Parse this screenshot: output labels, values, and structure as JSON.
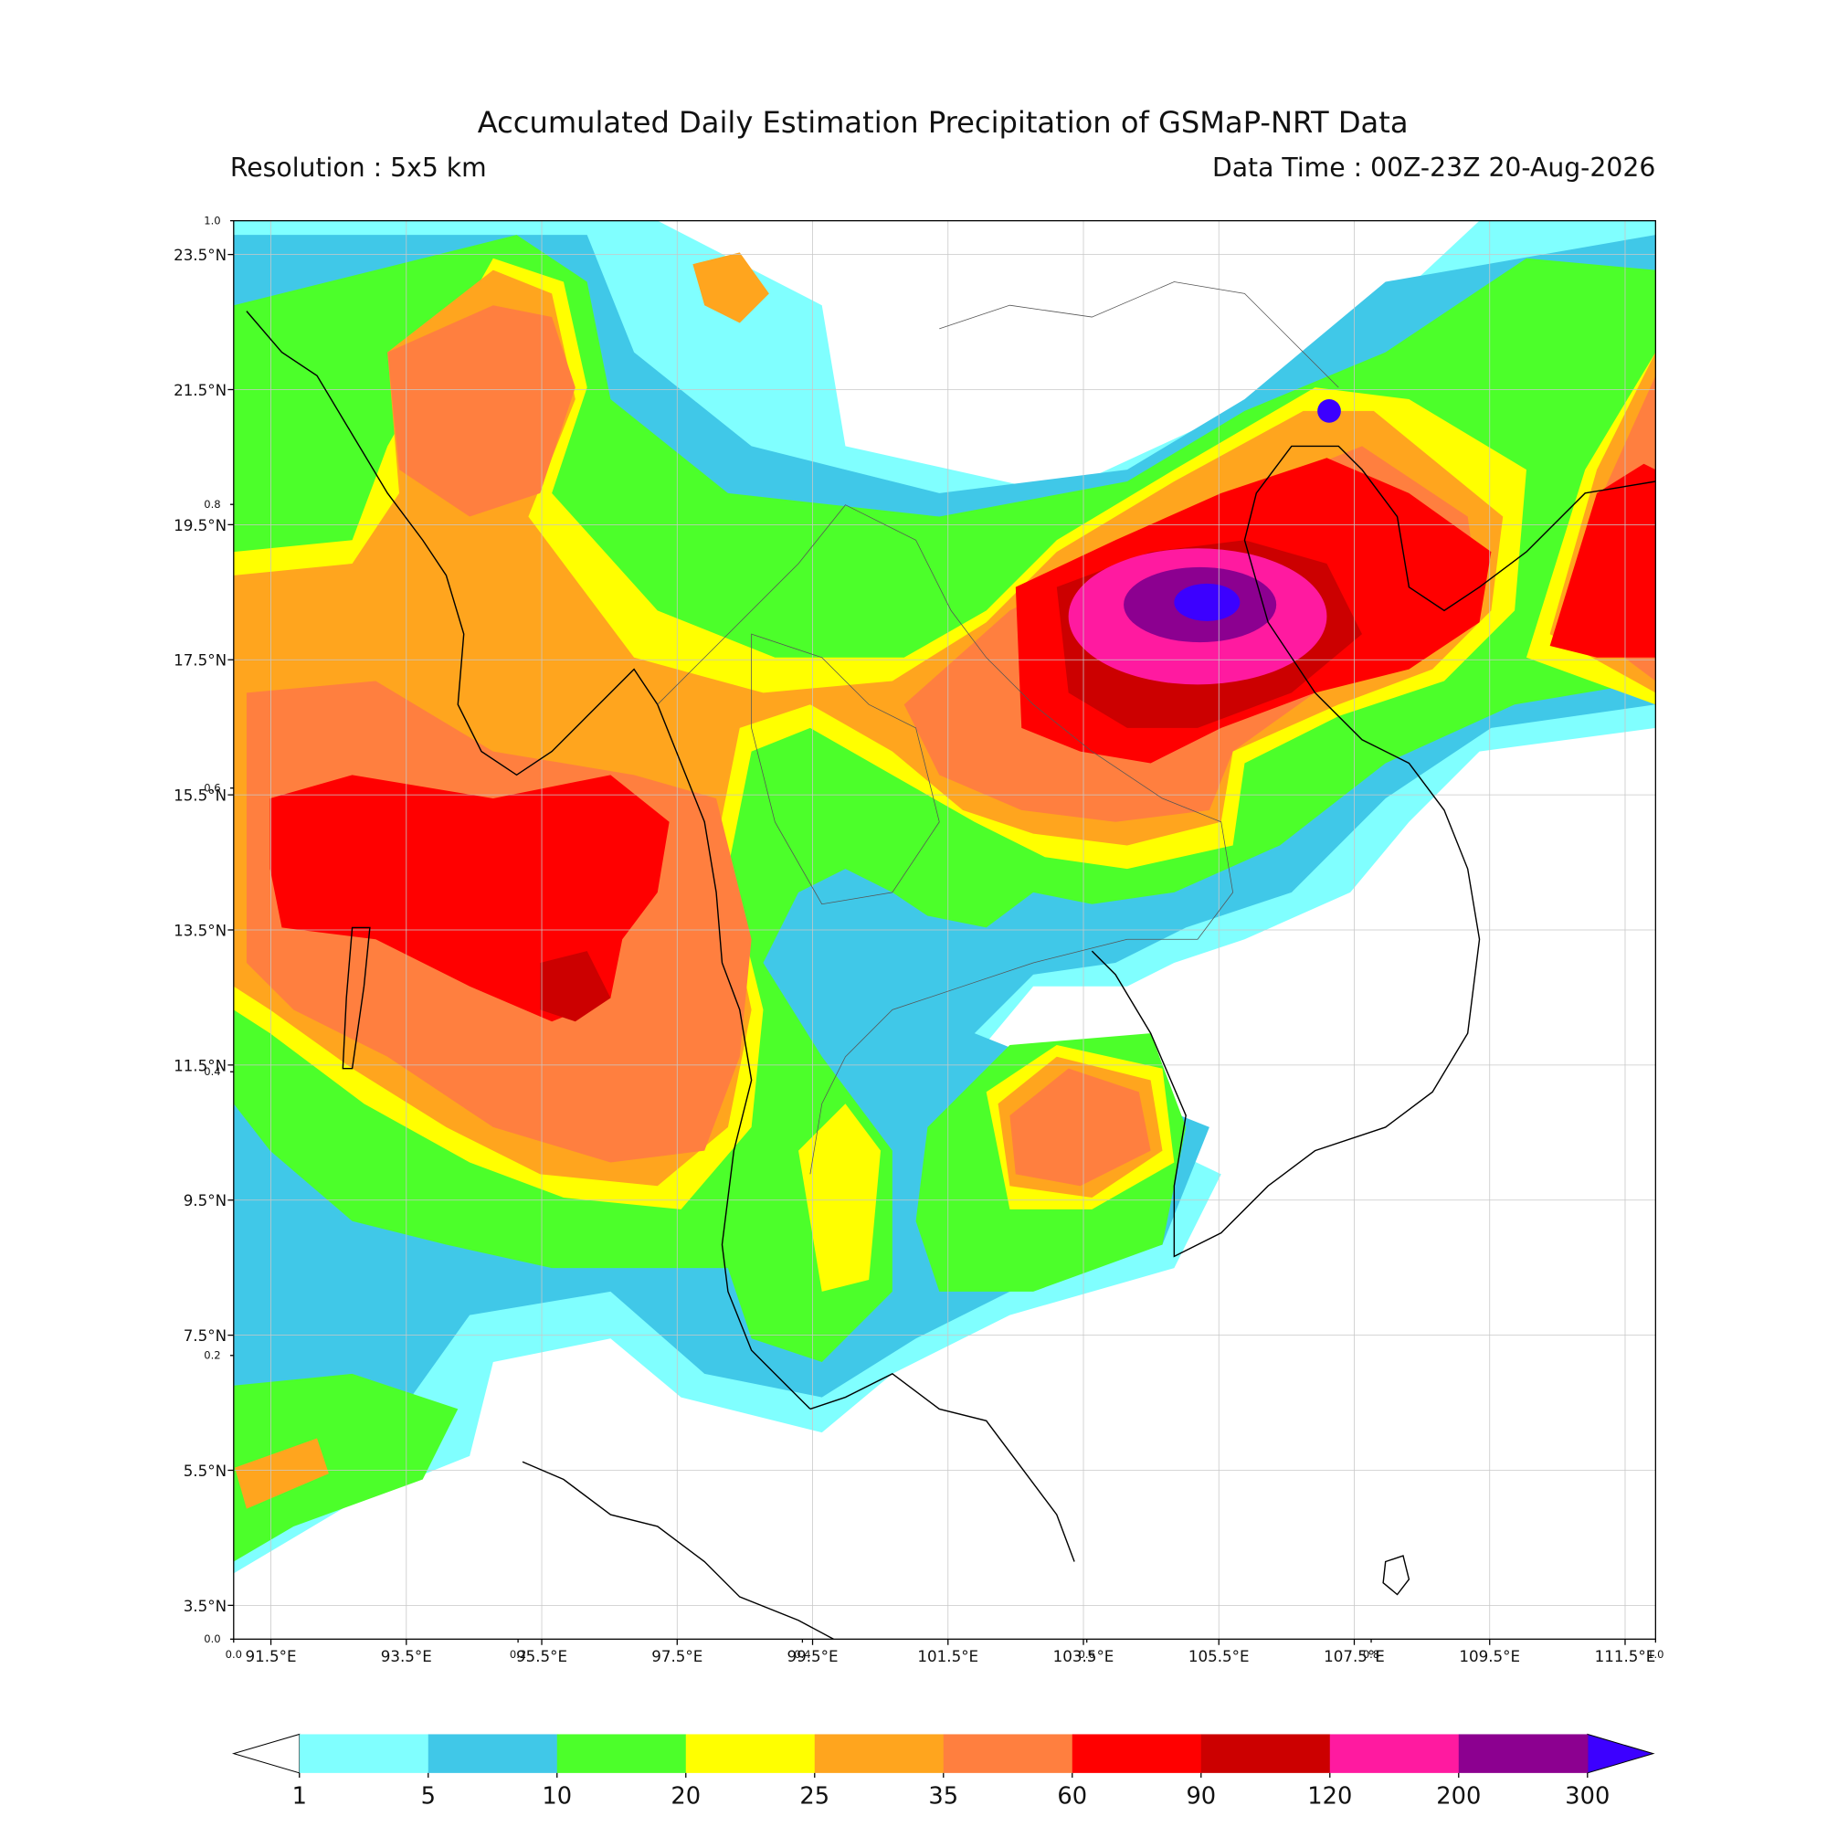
{
  "header": {
    "title": "Accumulated Daily Estimation Precipitation of GSMaP-NRT Data",
    "resolution": "Resolution : 5x5 km",
    "data_time": "Data Time : 00Z-23Z 20-Aug-2026"
  },
  "map": {
    "xlim": [
      90.95,
      111.95
    ],
    "ylim": [
      3,
      24
    ],
    "grid": true,
    "xticks": [
      {
        "value": 91.5,
        "label": "91.5°E"
      },
      {
        "value": 93.5,
        "label": "93.5°E"
      },
      {
        "value": 95.5,
        "label": "95.5°E"
      },
      {
        "value": 97.5,
        "label": "97.5°E"
      },
      {
        "value": 99.5,
        "label": "99.5°E"
      },
      {
        "value": 101.5,
        "label": "101.5°E"
      },
      {
        "value": 103.5,
        "label": "103.5°E"
      },
      {
        "value": 105.5,
        "label": "105.5°E"
      },
      {
        "value": 107.5,
        "label": "107.5°E"
      },
      {
        "value": 109.5,
        "label": "109.5°E"
      },
      {
        "value": 111.5,
        "label": "111.5°E"
      }
    ],
    "yticks": [
      {
        "value": 23.5,
        "label": "23.5°N"
      },
      {
        "value": 21.5,
        "label": "21.5°N"
      },
      {
        "value": 19.5,
        "label": "19.5°N"
      },
      {
        "value": 17.5,
        "label": "17.5°N"
      },
      {
        "value": 15.5,
        "label": "15.5°N"
      },
      {
        "value": 13.5,
        "label": "13.5°N"
      },
      {
        "value": 11.5,
        "label": "11.5°N"
      },
      {
        "value": 9.5,
        "label": "9.5°N"
      },
      {
        "value": 7.5,
        "label": "7.5°N"
      },
      {
        "value": 5.5,
        "label": "5.5°N"
      },
      {
        "value": 3.5,
        "label": "3.5°N"
      }
    ],
    "frame_xticks": [
      {
        "value": 0,
        "label": "0.0"
      },
      {
        "value": 0.2,
        "label": "0.2"
      },
      {
        "value": 0.4,
        "label": "0.4"
      },
      {
        "value": 0.6,
        "label": "0.6"
      },
      {
        "value": 0.8,
        "label": "0.8"
      },
      {
        "value": 1,
        "label": "1.0"
      }
    ],
    "frame_yticks": [
      {
        "value": 0,
        "label": "0.0"
      },
      {
        "value": 0.2,
        "label": "0.2"
      },
      {
        "value": 0.4,
        "label": "0.4"
      },
      {
        "value": 0.6,
        "label": "0.6"
      },
      {
        "value": 0.8,
        "label": "0.8"
      },
      {
        "value": 1,
        "label": "1.0"
      }
    ]
  },
  "colorbar": {
    "levels": [
      1,
      5,
      10,
      20,
      25,
      35,
      60,
      90,
      120,
      200,
      300
    ],
    "colors": [
      "#80ffff",
      "#40c8e8",
      "#4cff2a",
      "#ffff00",
      "#ffa51e",
      "#ff7f3f",
      "#ff0000",
      "#cc0000",
      "#ff1aa0",
      "#8c0090"
    ],
    "under_color": "#ffffff",
    "over_color": "#3c00ff"
  }
}
